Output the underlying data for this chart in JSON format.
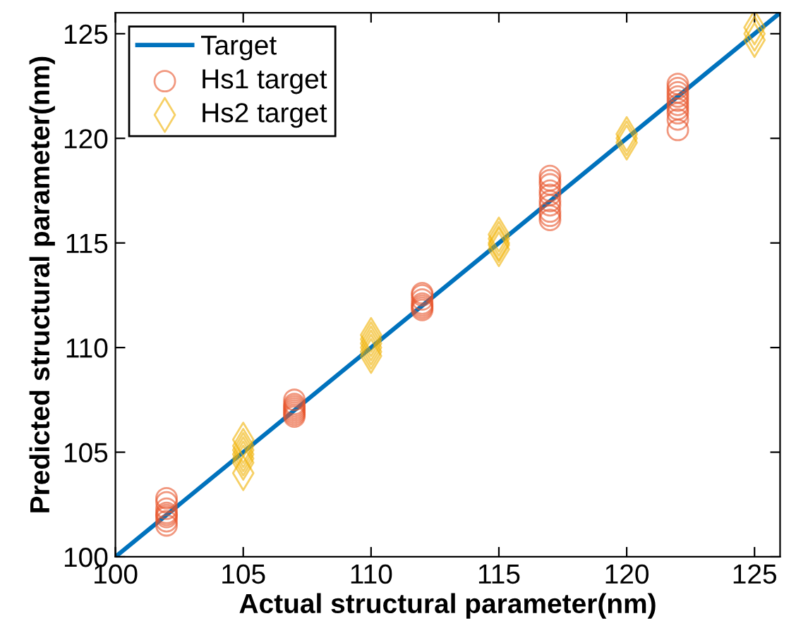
{
  "chart_data": {
    "type": "scatter",
    "xlabel": "Actual structural parameter(nm)",
    "ylabel": "Predicted structural parameter(nm)",
    "xlim": [
      100,
      126
    ],
    "ylim": [
      100,
      126
    ],
    "xticks": [
      100,
      105,
      110,
      115,
      120,
      125
    ],
    "yticks": [
      100,
      105,
      110,
      115,
      120,
      125
    ],
    "grid": false,
    "legend": "top left",
    "series": [
      {
        "name": "Target",
        "type": "line",
        "marker": "none",
        "line_style": "solid",
        "color": "#0072bd",
        "x": [
          100,
          126
        ],
        "values": [
          100,
          126
        ]
      },
      {
        "name": "Hs1 target",
        "marker": "circle",
        "color": "#e8532a",
        "x": [
          102,
          102,
          102,
          102,
          102,
          102,
          102,
          102,
          107,
          107,
          107,
          107,
          107,
          107,
          107,
          107,
          112,
          112,
          112,
          112,
          112,
          112,
          112,
          117,
          117,
          117,
          117,
          117,
          117,
          117,
          117,
          117,
          117,
          122,
          122,
          122,
          122,
          122,
          122,
          122,
          122,
          122,
          122
        ],
        "values": [
          101.5,
          101.7,
          101.9,
          102.0,
          102.1,
          102.3,
          102.6,
          102.8,
          106.7,
          106.8,
          106.9,
          107.0,
          107.1,
          107.2,
          107.3,
          107.5,
          111.8,
          111.9,
          112.0,
          112.1,
          112.3,
          112.5,
          112.6,
          116.1,
          116.3,
          116.5,
          116.8,
          117.0,
          117.3,
          117.5,
          117.8,
          118.0,
          118.2,
          120.4,
          120.9,
          121.2,
          121.4,
          121.6,
          121.8,
          122.0,
          122.2,
          122.4,
          122.6
        ]
      },
      {
        "name": "Hs2 target",
        "marker": "diamond",
        "color": "#f0b000",
        "x": [
          105,
          105,
          105,
          105,
          105,
          105,
          105,
          110,
          110,
          110,
          110,
          110,
          110,
          115,
          115,
          115,
          115,
          115,
          120,
          120,
          120,
          125,
          125,
          125
        ],
        "values": [
          104.0,
          104.5,
          104.7,
          104.9,
          105.1,
          105.3,
          105.6,
          109.6,
          109.8,
          110.0,
          110.2,
          110.4,
          110.6,
          114.7,
          114.9,
          115.0,
          115.2,
          115.4,
          119.8,
          120.0,
          120.2,
          124.7,
          125.0,
          125.3
        ]
      }
    ]
  }
}
